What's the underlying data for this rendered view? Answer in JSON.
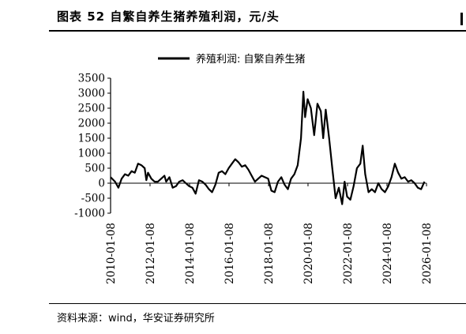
{
  "header": {
    "title": "图表 52  自繁自养生猪养殖利润，元/头"
  },
  "footer": {
    "source": "资料来源：wind，华安证券研究所"
  },
  "chart_data": {
    "type": "line",
    "title": "",
    "xlabel": "",
    "ylabel": "",
    "ylim": [
      -1000,
      3500
    ],
    "y_ticks": [
      3500,
      3000,
      2500,
      2000,
      1500,
      1000,
      500,
      0,
      -500,
      -1000
    ],
    "y_tick_labels": [
      "3500",
      "3000",
      "2500",
      "2000",
      "1500",
      "1000",
      "500",
      "0",
      "-500",
      "-1000"
    ],
    "x_range": [
      "2010-01-08",
      "2026-01-08"
    ],
    "x_tick_labels": [
      "2010-01-08",
      "2012-01-08",
      "2014-01-08",
      "2016-01-08",
      "2018-01-08",
      "2020-01-08",
      "2022-01-08",
      "2024-01-08",
      "2026-01-08"
    ],
    "legend_position": "top-center",
    "grid": false,
    "series": [
      {
        "name": "养殖利润: 自繁自养生猪",
        "color": "#000000",
        "points": [
          [
            "2010-01-08",
            200
          ],
          [
            "2010-04-01",
            50
          ],
          [
            "2010-06-01",
            -150
          ],
          [
            "2010-08-01",
            150
          ],
          [
            "2010-10-01",
            300
          ],
          [
            "2010-12-01",
            250
          ],
          [
            "2011-02-01",
            400
          ],
          [
            "2011-04-01",
            350
          ],
          [
            "2011-06-01",
            650
          ],
          [
            "2011-08-01",
            600
          ],
          [
            "2011-10-01",
            500
          ],
          [
            "2011-11-01",
            100
          ],
          [
            "2011-12-01",
            350
          ],
          [
            "2012-02-01",
            150
          ],
          [
            "2012-04-01",
            50
          ],
          [
            "2012-06-01",
            50
          ],
          [
            "2012-08-01",
            150
          ],
          [
            "2012-10-01",
            250
          ],
          [
            "2012-11-01",
            50
          ],
          [
            "2013-01-01",
            200
          ],
          [
            "2013-03-01",
            -150
          ],
          [
            "2013-05-01",
            -100
          ],
          [
            "2013-07-01",
            50
          ],
          [
            "2013-09-01",
            100
          ],
          [
            "2013-11-01",
            0
          ],
          [
            "2014-01-01",
            -100
          ],
          [
            "2014-03-01",
            -150
          ],
          [
            "2014-05-01",
            -350
          ],
          [
            "2014-07-01",
            100
          ],
          [
            "2014-09-01",
            50
          ],
          [
            "2014-11-01",
            -50
          ],
          [
            "2015-01-01",
            -200
          ],
          [
            "2015-03-01",
            -300
          ],
          [
            "2015-05-01",
            -50
          ],
          [
            "2015-07-01",
            350
          ],
          [
            "2015-09-01",
            400
          ],
          [
            "2015-11-01",
            300
          ],
          [
            "2016-01-01",
            500
          ],
          [
            "2016-03-01",
            650
          ],
          [
            "2016-05-01",
            800
          ],
          [
            "2016-07-01",
            700
          ],
          [
            "2016-09-01",
            550
          ],
          [
            "2016-11-01",
            600
          ],
          [
            "2017-01-01",
            450
          ],
          [
            "2017-03-01",
            250
          ],
          [
            "2017-05-01",
            50
          ],
          [
            "2017-07-01",
            150
          ],
          [
            "2017-09-01",
            250
          ],
          [
            "2017-11-01",
            200
          ],
          [
            "2018-01-01",
            150
          ],
          [
            "2018-03-01",
            -250
          ],
          [
            "2018-05-01",
            -300
          ],
          [
            "2018-07-01",
            50
          ],
          [
            "2018-09-01",
            200
          ],
          [
            "2018-11-01",
            -50
          ],
          [
            "2019-01-01",
            -200
          ],
          [
            "2019-03-01",
            150
          ],
          [
            "2019-05-01",
            300
          ],
          [
            "2019-07-01",
            600
          ],
          [
            "2019-09-01",
            1500
          ],
          [
            "2019-10-15",
            3050
          ],
          [
            "2019-11-15",
            2200
          ],
          [
            "2020-01-01",
            2800
          ],
          [
            "2020-03-01",
            2500
          ],
          [
            "2020-05-01",
            1600
          ],
          [
            "2020-07-01",
            2650
          ],
          [
            "2020-09-01",
            2400
          ],
          [
            "2020-10-15",
            1500
          ],
          [
            "2020-12-01",
            2450
          ],
          [
            "2021-02-01",
            1500
          ],
          [
            "2021-04-01",
            500
          ],
          [
            "2021-06-01",
            -500
          ],
          [
            "2021-08-01",
            -150
          ],
          [
            "2021-10-01",
            -700
          ],
          [
            "2021-11-15",
            50
          ],
          [
            "2022-01-01",
            -450
          ],
          [
            "2022-03-01",
            -550
          ],
          [
            "2022-05-01",
            -100
          ],
          [
            "2022-07-01",
            500
          ],
          [
            "2022-09-01",
            650
          ],
          [
            "2022-10-15",
            1250
          ],
          [
            "2022-12-01",
            300
          ],
          [
            "2023-02-01",
            -300
          ],
          [
            "2023-04-01",
            -200
          ],
          [
            "2023-06-01",
            -300
          ],
          [
            "2023-08-01",
            0
          ],
          [
            "2023-10-01",
            -200
          ],
          [
            "2023-12-01",
            -300
          ],
          [
            "2024-02-01",
            -100
          ],
          [
            "2024-04-01",
            200
          ],
          [
            "2024-06-01",
            650
          ],
          [
            "2024-08-01",
            350
          ],
          [
            "2024-10-01",
            150
          ],
          [
            "2024-12-01",
            200
          ],
          [
            "2025-02-01",
            50
          ],
          [
            "2025-04-01",
            100
          ],
          [
            "2025-06-01",
            0
          ],
          [
            "2025-08-01",
            -150
          ],
          [
            "2025-10-01",
            -200
          ],
          [
            "2025-12-01",
            50
          ]
        ]
      }
    ]
  }
}
